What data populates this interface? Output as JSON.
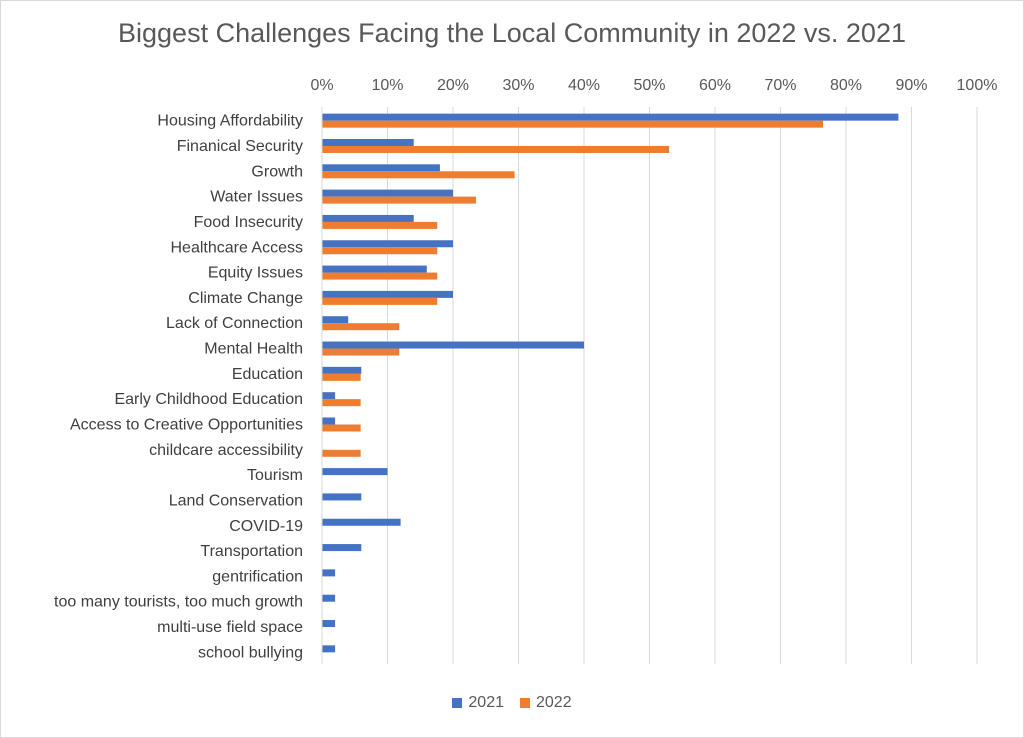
{
  "chart_data": {
    "type": "bar",
    "orientation": "horizontal",
    "title": "Biggest Challenges Facing the Local Community in 2022 vs. 2021",
    "xlim": [
      0,
      100
    ],
    "x_ticks": [
      "0%",
      "10%",
      "20%",
      "30%",
      "40%",
      "50%",
      "60%",
      "70%",
      "80%",
      "90%",
      "100%"
    ],
    "x_axis_position": "top",
    "grid": true,
    "legend_position": "bottom",
    "categories": [
      "Housing Affordability",
      "Finanical Security",
      "Growth",
      "Water Issues",
      "Food Insecurity",
      "Healthcare Access",
      "Equity Issues",
      "Climate Change",
      "Lack of Connection",
      "Mental Health",
      "Education",
      "Early Childhood Education",
      "Access to Creative Opportunities",
      "childcare accessibility",
      "Tourism",
      "Land Conservation",
      "COVID-19",
      "Transportation",
      "gentrification",
      "too many tourists, too much growth",
      "multi-use field space",
      "school bullying"
    ],
    "series": [
      {
        "name": "2021",
        "color": "#4472C4",
        "values": [
          88,
          14,
          18,
          20,
          14,
          20,
          16,
          20,
          4,
          40,
          6,
          2,
          2,
          0,
          10,
          6,
          12,
          6,
          2,
          2,
          2,
          2
        ]
      },
      {
        "name": "2022",
        "color": "#ED7D31",
        "values": [
          76.5,
          53,
          29.4,
          23.5,
          17.6,
          17.6,
          17.6,
          17.6,
          11.8,
          11.8,
          5.9,
          5.9,
          5.9,
          5.9,
          0,
          0,
          0,
          0,
          0,
          0,
          0,
          0
        ]
      }
    ]
  }
}
